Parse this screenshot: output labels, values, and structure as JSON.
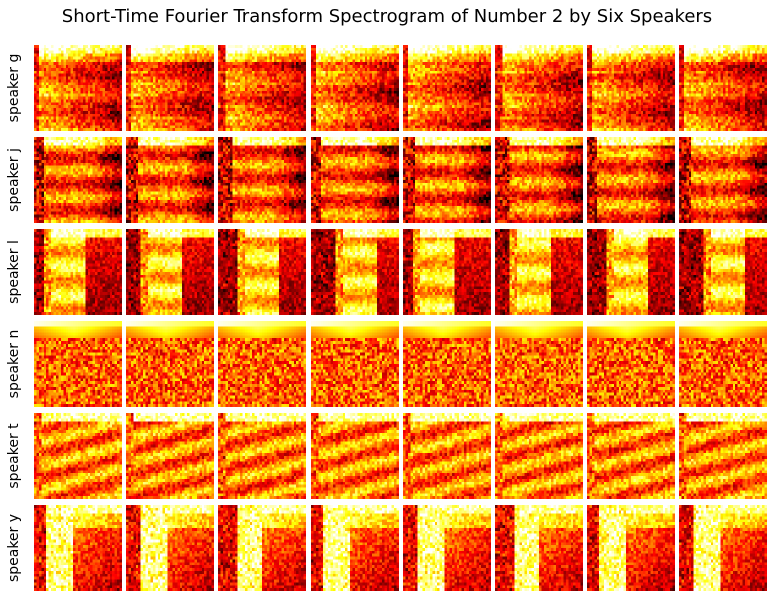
{
  "chart_data": {
    "type": "heatmap",
    "title": "Short-Time Fourier Transform Spectrogram of Number 2 by Six Speakers",
    "colormap": "hot",
    "columns_per_row": 8,
    "axes": "off",
    "rows": [
      {
        "label": "speaker g",
        "pattern": "g"
      },
      {
        "label": "speaker j",
        "pattern": "j"
      },
      {
        "label": "speaker l",
        "pattern": "l"
      },
      {
        "label": "speaker n",
        "pattern": "n"
      },
      {
        "label": "speaker t",
        "pattern": "t"
      },
      {
        "label": "speaker y",
        "pattern": "y"
      }
    ]
  }
}
